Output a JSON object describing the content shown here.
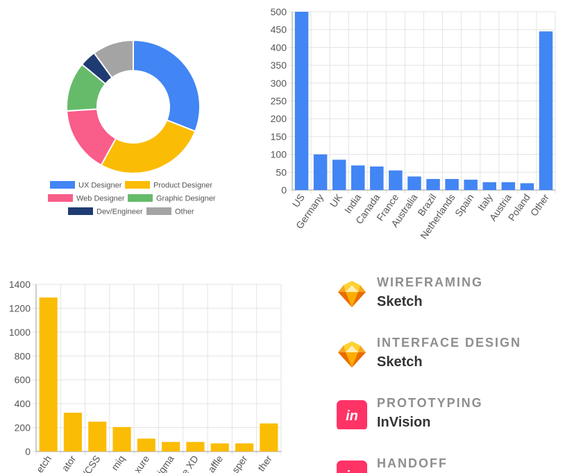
{
  "colors": {
    "blue": "#4285f4",
    "amber": "#fbbc05",
    "grid": "#e3e3e3",
    "axis": "#999999",
    "tick_text": "#555555"
  },
  "chart_data": [
    {
      "type": "pie",
      "subtype": "doughnut",
      "categories": [
        "UX Designer",
        "Product Designer",
        "Web Designer",
        "Graphic Designer",
        "Dev/Engineer",
        "Other"
      ],
      "values": [
        31,
        27,
        16,
        12,
        4,
        10
      ],
      "colors": [
        "#4285f4",
        "#fbbc05",
        "#f95d8a",
        "#66bb6a",
        "#1f3b73",
        "#a4a4a4"
      ],
      "legend": "bottom"
    },
    {
      "type": "bar",
      "categories": [
        "US",
        "Germany",
        "UK",
        "India",
        "Canada",
        "France",
        "Australia",
        "Brazil",
        "Netherlands",
        "Spain",
        "Italy",
        "Austria",
        "Poland",
        "Other"
      ],
      "values": [
        500,
        100,
        85,
        69,
        66,
        55,
        38,
        31,
        31,
        29,
        22,
        22,
        19,
        445
      ],
      "ylim": [
        0,
        500
      ],
      "yticks": [
        0,
        50,
        100,
        150,
        200,
        250,
        300,
        350,
        400,
        450,
        500
      ],
      "grid": true,
      "color": "#4285f4",
      "xlabel": "",
      "ylabel": "",
      "title": ""
    },
    {
      "type": "bar",
      "categories": [
        "etch",
        "ator",
        "/CSS",
        "miq",
        "xure",
        "igma",
        "e XD",
        "affle",
        "sper",
        "ther"
      ],
      "values": [
        1290,
        325,
        250,
        205,
        108,
        80,
        80,
        68,
        68,
        235
      ],
      "ylim": [
        0,
        1400
      ],
      "yticks": [
        0,
        200,
        400,
        600,
        800,
        1000,
        1200,
        1400
      ],
      "grid": true,
      "color": "#fbbc05",
      "xlabel": "",
      "ylabel": "",
      "title": ""
    }
  ],
  "tools": [
    {
      "category": "WIREFRAMING",
      "name": "Sketch",
      "icon": "sketch-diamond-icon"
    },
    {
      "category": "INTERFACE DESIGN",
      "name": "Sketch",
      "icon": "sketch-diamond-icon"
    },
    {
      "category": "PROTOTYPING",
      "name": "InVision",
      "icon": "invision-icon",
      "icon_text": "in"
    },
    {
      "category": "HANDOFF",
      "name": "",
      "icon": "invision-icon",
      "icon_text": "in"
    }
  ]
}
